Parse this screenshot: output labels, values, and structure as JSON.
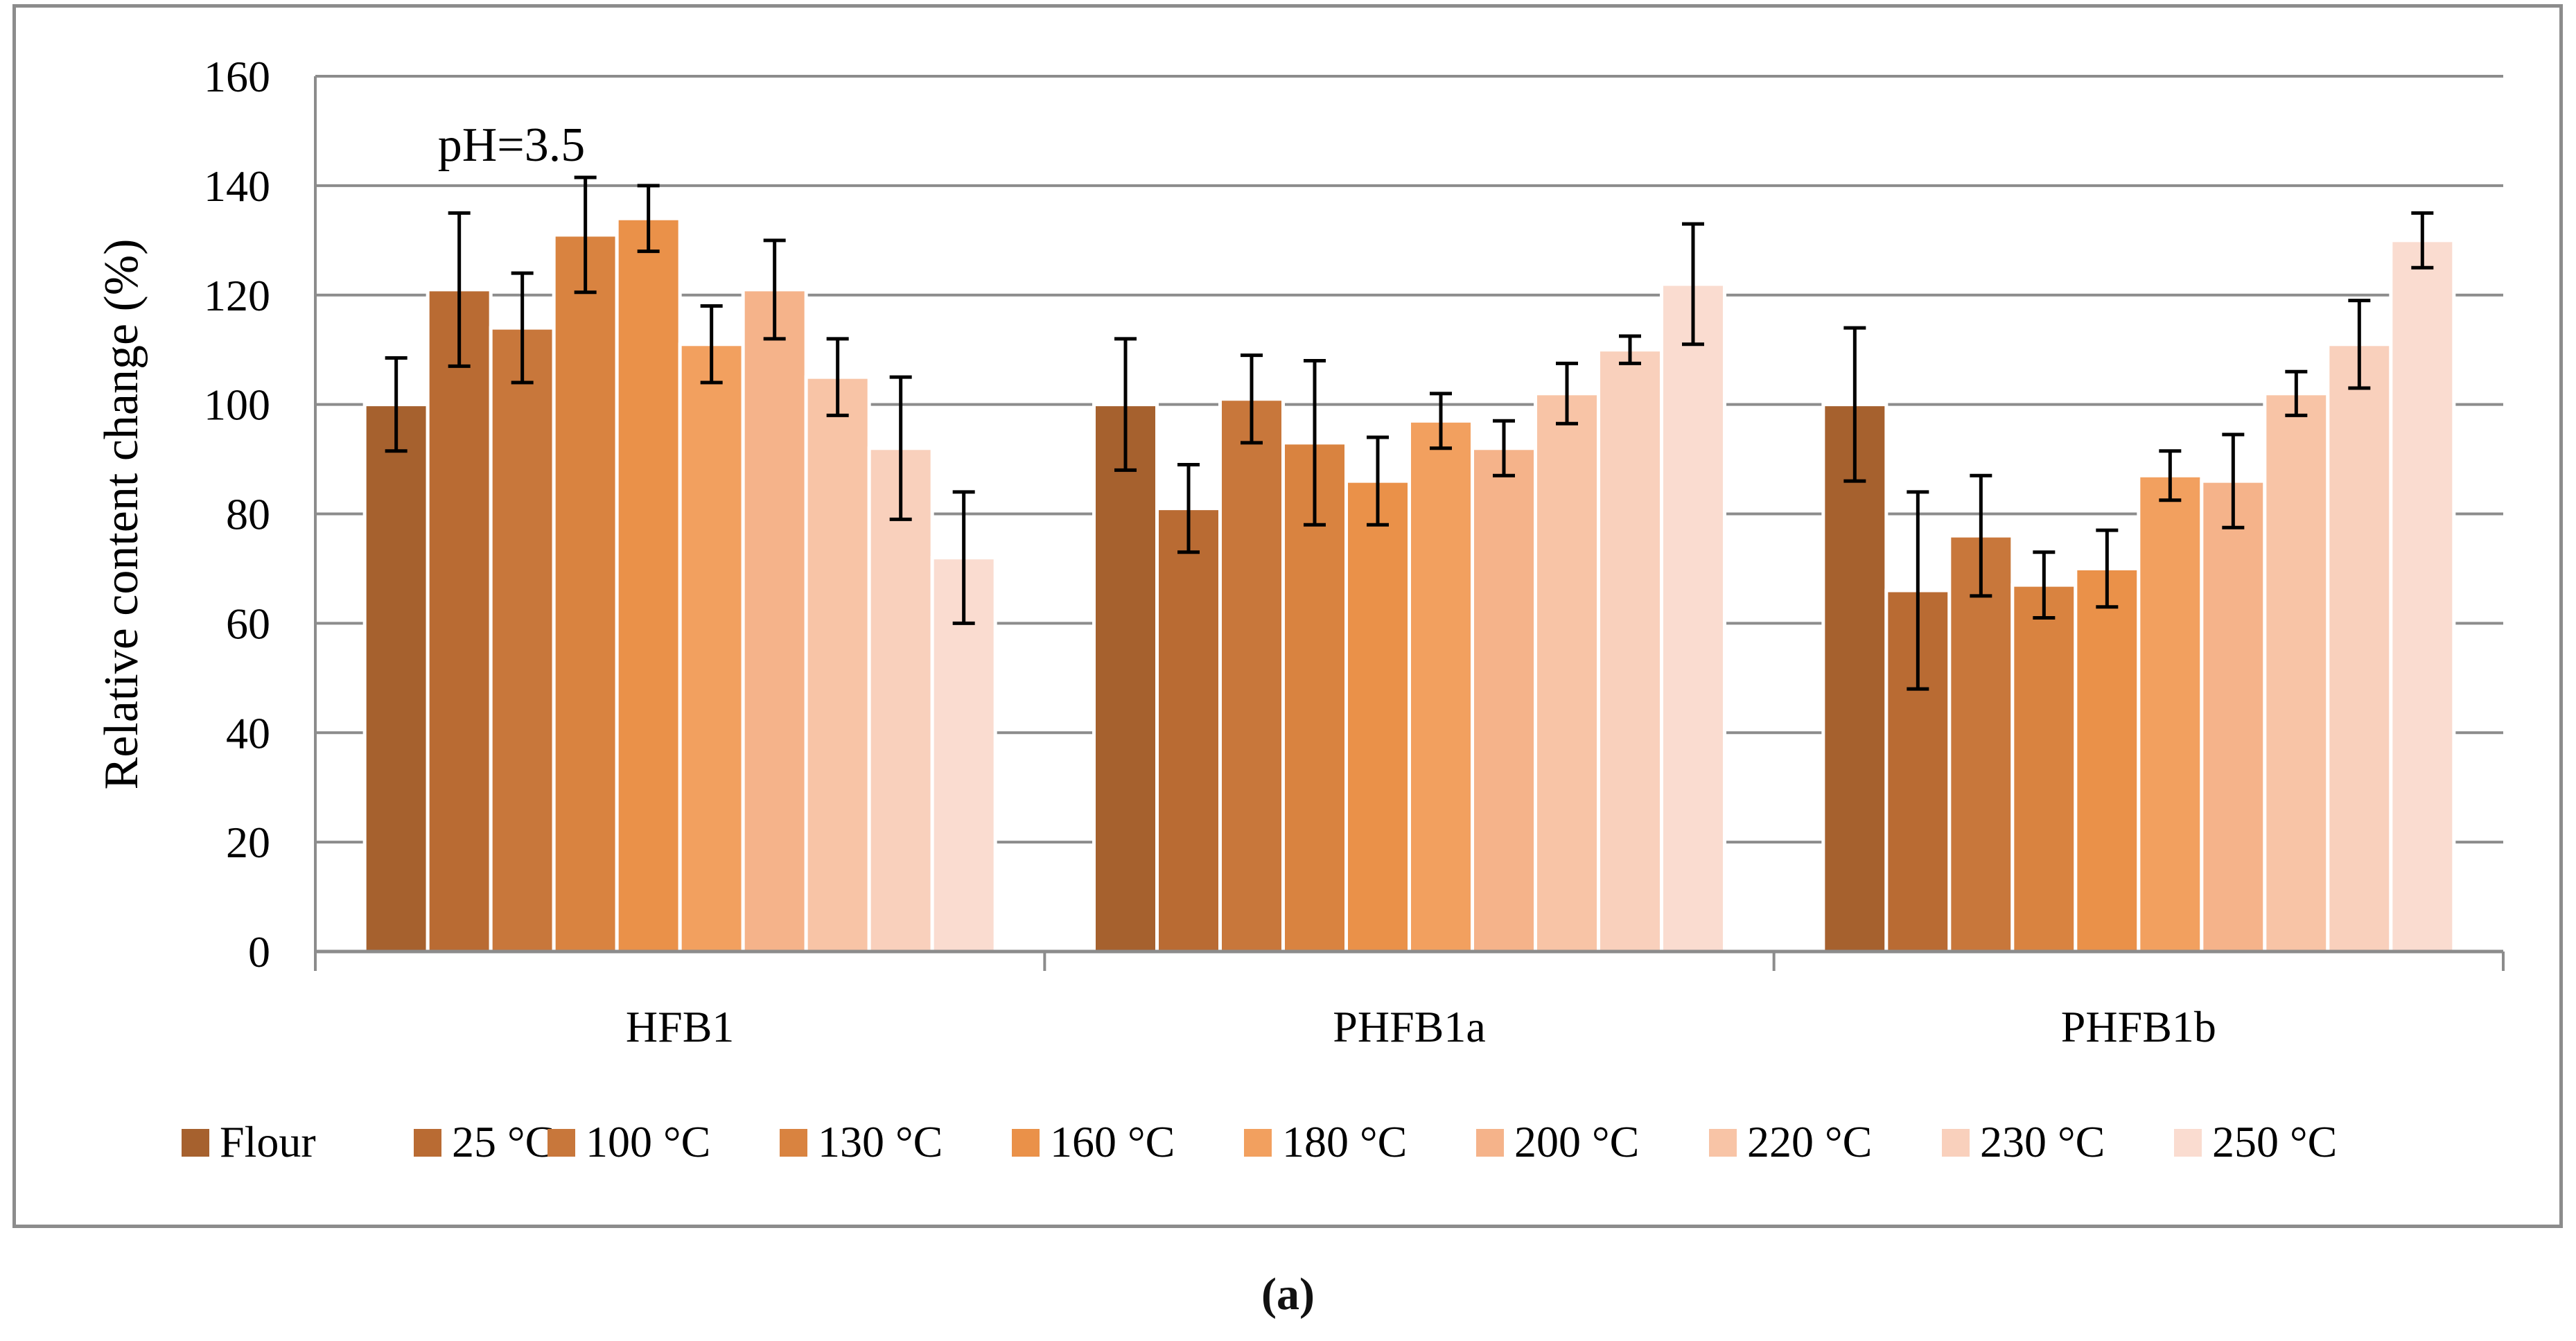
{
  "panel_label": "(a)",
  "colors": {
    "series": [
      "#a6612e",
      "#b96b33",
      "#c8773b",
      "#d98340",
      "#ea9149",
      "#f2a05f",
      "#f5b38a",
      "#f8c4a6",
      "#f9d0bc",
      "#fadcd0"
    ],
    "grid": "#8c8c8c",
    "errorbar": "#000000",
    "text": "#000000"
  },
  "chart_data": {
    "type": "bar",
    "title": "",
    "annotation": "pH=3.5",
    "xlabel": "",
    "ylabel": "Relative content change (%)",
    "ylim": [
      0,
      160
    ],
    "yticks": [
      0,
      20,
      40,
      60,
      80,
      100,
      120,
      140,
      160
    ],
    "grid": true,
    "legend_position": "bottom",
    "categories": [
      "HFB1",
      "PHFB1a",
      "PHFB1b"
    ],
    "series": [
      {
        "name": "Flour",
        "values": [
          100,
          100,
          100
        ],
        "errors": [
          8.5,
          12,
          14
        ]
      },
      {
        "name": "25 °C",
        "values": [
          121,
          81,
          66
        ],
        "errors": [
          14,
          8,
          18
        ]
      },
      {
        "name": "100 °C",
        "values": [
          114,
          101,
          76
        ],
        "errors": [
          10,
          8,
          11
        ]
      },
      {
        "name": "130 °C",
        "values": [
          131,
          93,
          67
        ],
        "errors": [
          10.5,
          15,
          6
        ]
      },
      {
        "name": "160 °C",
        "values": [
          134,
          86,
          70
        ],
        "errors": [
          6,
          8,
          7
        ]
      },
      {
        "name": "180 °C",
        "values": [
          111,
          97,
          87
        ],
        "errors": [
          7,
          5,
          4.5
        ]
      },
      {
        "name": "200 °C",
        "values": [
          121,
          92,
          86
        ],
        "errors": [
          9,
          5,
          8.5
        ]
      },
      {
        "name": "220 °C",
        "values": [
          105,
          102,
          102
        ],
        "errors": [
          7,
          5.5,
          4
        ]
      },
      {
        "name": "230 °C",
        "values": [
          92,
          110,
          111
        ],
        "errors": [
          13,
          2.5,
          8
        ]
      },
      {
        "name": "250 °C",
        "values": [
          72,
          122,
          130
        ],
        "errors": [
          12,
          11,
          5
        ]
      }
    ]
  }
}
